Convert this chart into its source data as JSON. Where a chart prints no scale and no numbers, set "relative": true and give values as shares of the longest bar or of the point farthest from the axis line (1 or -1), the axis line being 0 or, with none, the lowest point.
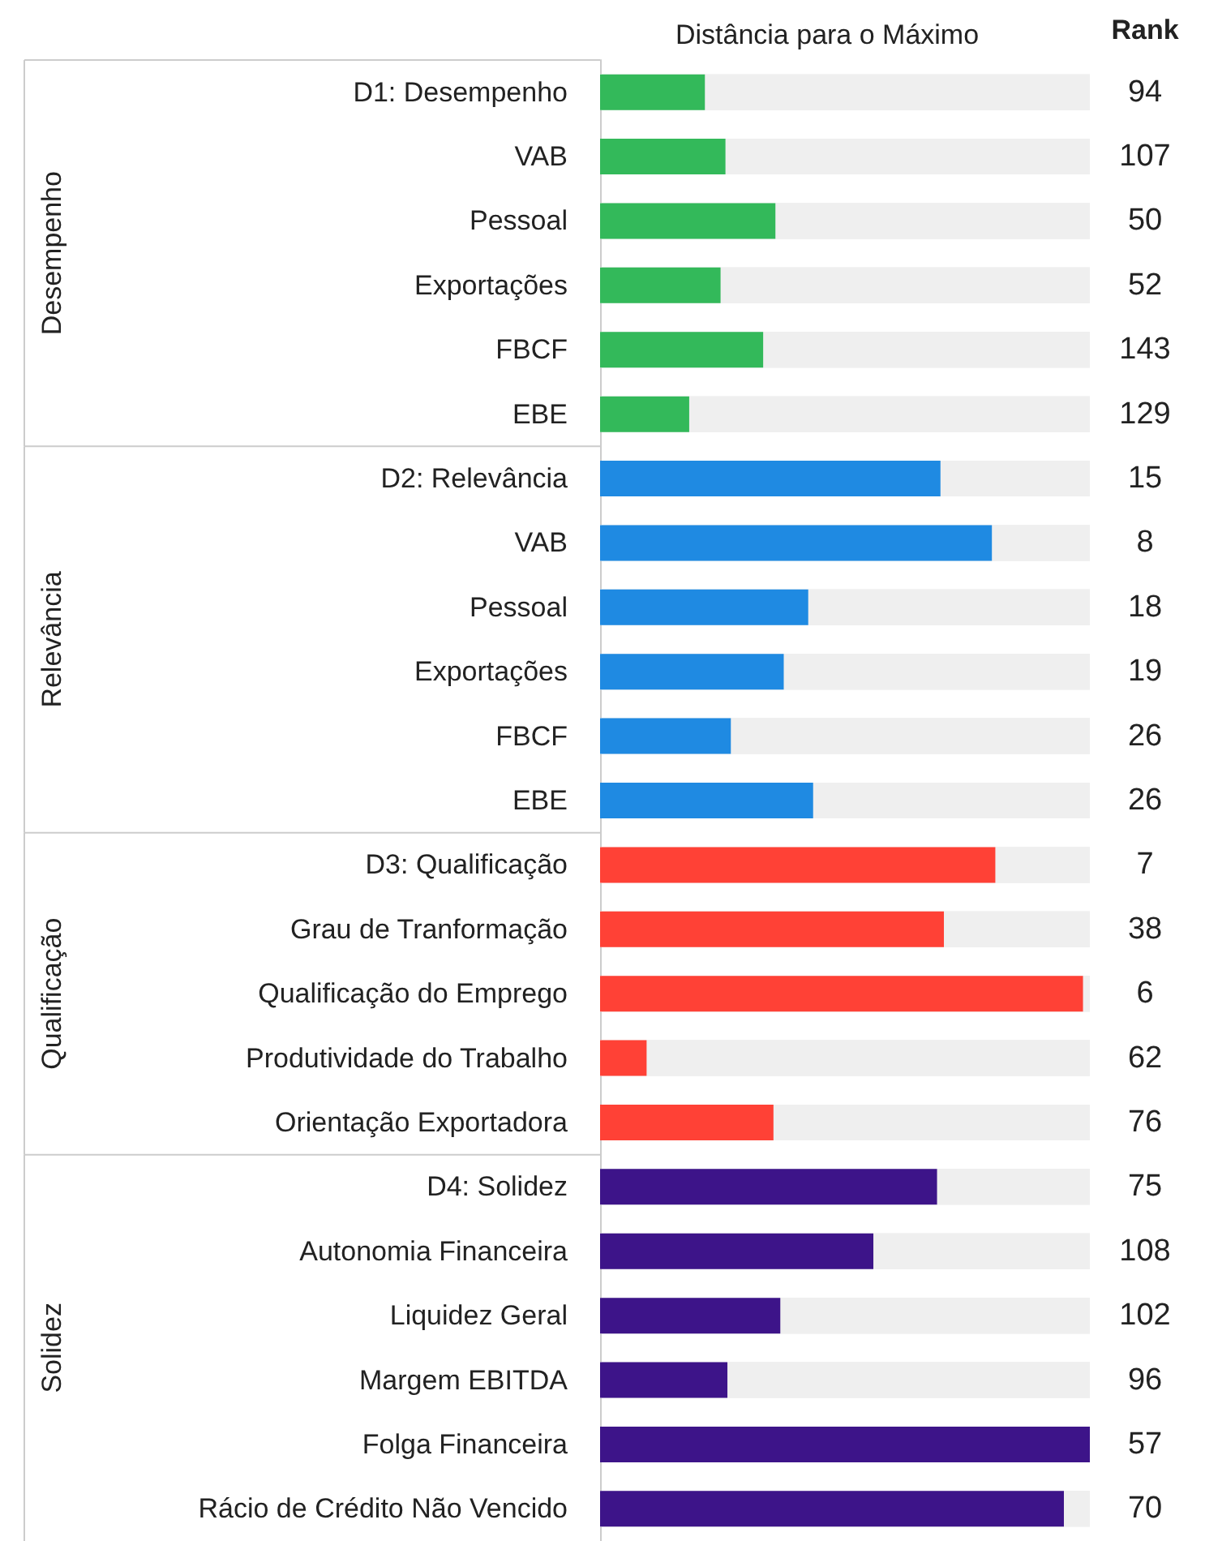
{
  "chart_data": {
    "type": "bar",
    "orientation": "horizontal",
    "relative": true,
    "stacked": true,
    "title": "Distância para o Máximo",
    "y2label": "Rank",
    "categories": [
      "D1: Desempenho",
      "VAB",
      "Pessoal",
      "Exportações",
      "FBCF",
      "EBE",
      "D2: Relevância",
      "VAB",
      "Pessoal",
      "Exportações",
      "FBCF",
      "EBE",
      "D3: Qualificação",
      "Grau de Tranformação",
      "Qualificação do Emprego",
      "Produtividade do Trabalho",
      "Orientação Exportadora",
      "D4: Solidez",
      "Autonomia Financeira",
      "Liquidez Geral",
      "Margem EBITDA",
      "Folga Financeira",
      "Rácio de Crédito Não Vencido"
    ],
    "series": [
      {
        "color": "#33b95a",
        "values": [
          0.214,
          0.256,
          0.358,
          0.246,
          0.333,
          0.182,
          null,
          null,
          null,
          null,
          null,
          null,
          null,
          null,
          null,
          null,
          null,
          null,
          null,
          null,
          null,
          null,
          null
        ]
      },
      {
        "color": "#1f8ae2",
        "values": [
          null,
          null,
          null,
          null,
          null,
          null,
          0.695,
          0.8,
          0.425,
          0.375,
          0.267,
          0.435,
          null,
          null,
          null,
          null,
          null,
          null,
          null,
          null,
          null,
          null,
          null
        ]
      },
      {
        "color": "#ff4136",
        "values": [
          null,
          null,
          null,
          null,
          null,
          null,
          null,
          null,
          null,
          null,
          null,
          null,
          0.807,
          0.702,
          0.986,
          0.095,
          0.354,
          null,
          null,
          null,
          null,
          null,
          null
        ]
      },
      {
        "color": "#3d1489",
        "values": [
          null,
          null,
          null,
          null,
          null,
          null,
          null,
          null,
          null,
          null,
          null,
          null,
          null,
          null,
          null,
          null,
          null,
          0.688,
          0.558,
          0.368,
          0.26,
          1,
          0.947
        ]
      }
    ],
    "annotations": [
      "Desempenho",
      "Relevância",
      "Qualificação",
      "Solidez",
      "94",
      "107",
      "50",
      "52",
      "143",
      "129",
      "15",
      "8",
      "18",
      "19",
      "26",
      "26",
      "7",
      "38",
      "6",
      "62",
      "76",
      "75",
      "108",
      "102",
      "96",
      "57",
      "70"
    ]
  }
}
